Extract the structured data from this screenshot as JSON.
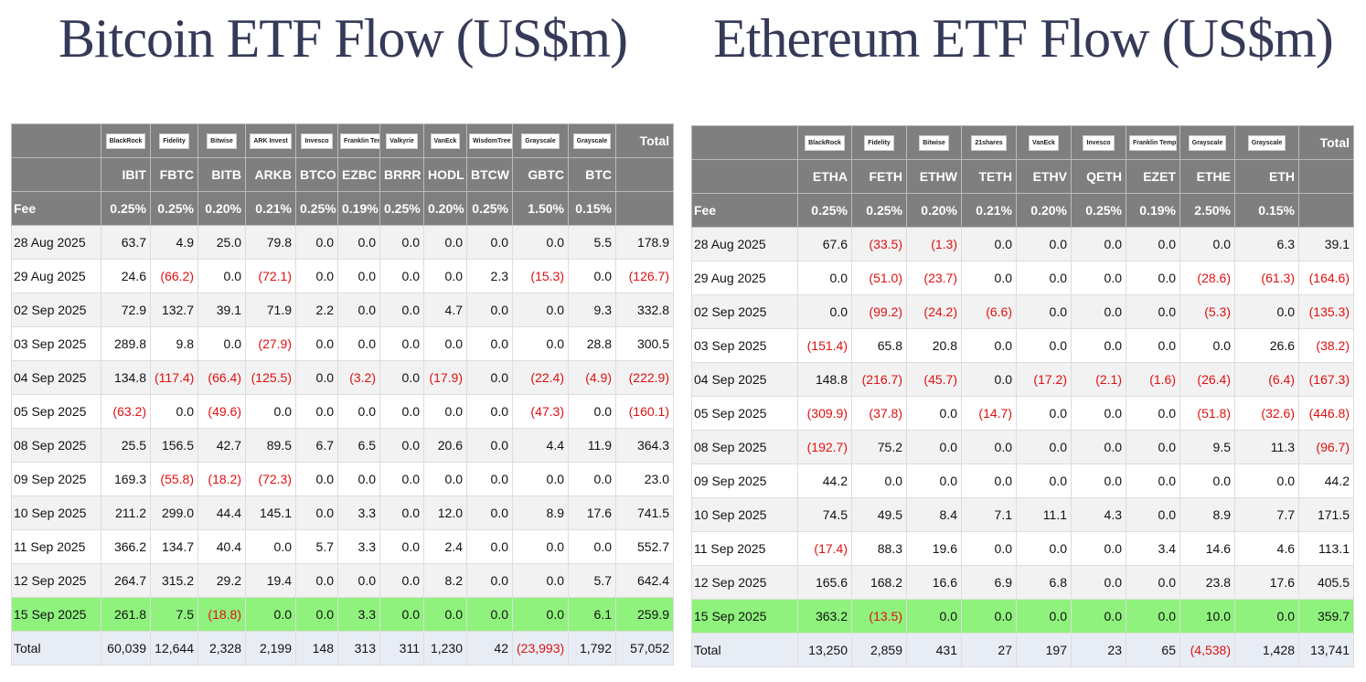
{
  "bitcoin": {
    "title": "Bitcoin ETF Flow (US$m)",
    "logos": [
      "BlackRock",
      "Fidelity",
      "Bitwise",
      "ARK Invest",
      "Invesco",
      "Franklin Templeton",
      "Valkyrie",
      "VanEck",
      "WisdomTree",
      "Grayscale",
      "Grayscale"
    ],
    "total_header": "Total",
    "tickers": [
      "IBIT",
      "FBTC",
      "BITB",
      "ARKB",
      "BTCO",
      "EZBC",
      "BRRR",
      "HODL",
      "BTCW",
      "GBTC",
      "BTC"
    ],
    "fee_label": "Fee",
    "fees": [
      "0.25%",
      "0.25%",
      "0.20%",
      "0.21%",
      "0.25%",
      "0.19%",
      "0.25%",
      "0.20%",
      "0.25%",
      "1.50%",
      "0.15%"
    ],
    "rows": [
      [
        "28 Aug 2025",
        "63.7",
        "4.9",
        "25.0",
        "79.8",
        "0.0",
        "0.0",
        "0.0",
        "0.0",
        "0.0",
        "0.0",
        "5.5",
        "178.9"
      ],
      [
        "29 Aug 2025",
        "24.6",
        "(66.2)",
        "0.0",
        "(72.1)",
        "0.0",
        "0.0",
        "0.0",
        "0.0",
        "2.3",
        "(15.3)",
        "0.0",
        "(126.7)"
      ],
      [
        "02 Sep 2025",
        "72.9",
        "132.7",
        "39.1",
        "71.9",
        "2.2",
        "0.0",
        "0.0",
        "4.7",
        "0.0",
        "0.0",
        "9.3",
        "332.8"
      ],
      [
        "03 Sep 2025",
        "289.8",
        "9.8",
        "0.0",
        "(27.9)",
        "0.0",
        "0.0",
        "0.0",
        "0.0",
        "0.0",
        "0.0",
        "28.8",
        "300.5"
      ],
      [
        "04 Sep 2025",
        "134.8",
        "(117.4)",
        "(66.4)",
        "(125.5)",
        "0.0",
        "(3.2)",
        "0.0",
        "(17.9)",
        "0.0",
        "(22.4)",
        "(4.9)",
        "(222.9)"
      ],
      [
        "05 Sep 2025",
        "(63.2)",
        "0.0",
        "(49.6)",
        "0.0",
        "0.0",
        "0.0",
        "0.0",
        "0.0",
        "0.0",
        "(47.3)",
        "0.0",
        "(160.1)"
      ],
      [
        "08 Sep 2025",
        "25.5",
        "156.5",
        "42.7",
        "89.5",
        "6.7",
        "6.5",
        "0.0",
        "20.6",
        "0.0",
        "4.4",
        "11.9",
        "364.3"
      ],
      [
        "09 Sep 2025",
        "169.3",
        "(55.8)",
        "(18.2)",
        "(72.3)",
        "0.0",
        "0.0",
        "0.0",
        "0.0",
        "0.0",
        "0.0",
        "0.0",
        "23.0"
      ],
      [
        "10 Sep 2025",
        "211.2",
        "299.0",
        "44.4",
        "145.1",
        "0.0",
        "3.3",
        "0.0",
        "12.0",
        "0.0",
        "8.9",
        "17.6",
        "741.5"
      ],
      [
        "11 Sep 2025",
        "366.2",
        "134.7",
        "40.4",
        "0.0",
        "5.7",
        "3.3",
        "0.0",
        "2.4",
        "0.0",
        "0.0",
        "0.0",
        "552.7"
      ],
      [
        "12 Sep 2025",
        "264.7",
        "315.2",
        "29.2",
        "19.4",
        "0.0",
        "0.0",
        "0.0",
        "8.2",
        "0.0",
        "0.0",
        "5.7",
        "642.4"
      ],
      [
        "15 Sep 2025",
        "261.8",
        "7.5",
        "(18.8)",
        "0.0",
        "0.0",
        "3.3",
        "0.0",
        "0.0",
        "0.0",
        "0.0",
        "6.1",
        "259.9"
      ]
    ],
    "total_row": [
      "Total",
      "60,039",
      "12,644",
      "2,328",
      "2,199",
      "148",
      "313",
      "311",
      "1,230",
      "42",
      "(23,993)",
      "1,792",
      "57,052"
    ]
  },
  "ethereum": {
    "title": "Ethereum ETF Flow (US$m)",
    "logos": [
      "BlackRock",
      "Fidelity",
      "Bitwise",
      "21shares",
      "VanEck",
      "Invesco",
      "Franklin Templeton",
      "Grayscale",
      "Grayscale"
    ],
    "total_header": "Total",
    "tickers": [
      "ETHA",
      "FETH",
      "ETHW",
      "TETH",
      "ETHV",
      "QETH",
      "EZET",
      "ETHE",
      "ETH"
    ],
    "fee_label": "Fee",
    "fees": [
      "0.25%",
      "0.25%",
      "0.20%",
      "0.21%",
      "0.20%",
      "0.25%",
      "0.19%",
      "2.50%",
      "0.15%"
    ],
    "rows": [
      [
        "28 Aug 2025",
        "67.6",
        "(33.5)",
        "(1.3)",
        "0.0",
        "0.0",
        "0.0",
        "0.0",
        "0.0",
        "6.3",
        "39.1"
      ],
      [
        "29 Aug 2025",
        "0.0",
        "(51.0)",
        "(23.7)",
        "0.0",
        "0.0",
        "0.0",
        "0.0",
        "(28.6)",
        "(61.3)",
        "(164.6)"
      ],
      [
        "02 Sep 2025",
        "0.0",
        "(99.2)",
        "(24.2)",
        "(6.6)",
        "0.0",
        "0.0",
        "0.0",
        "(5.3)",
        "0.0",
        "(135.3)"
      ],
      [
        "03 Sep 2025",
        "(151.4)",
        "65.8",
        "20.8",
        "0.0",
        "0.0",
        "0.0",
        "0.0",
        "0.0",
        "26.6",
        "(38.2)"
      ],
      [
        "04 Sep 2025",
        "148.8",
        "(216.7)",
        "(45.7)",
        "0.0",
        "(17.2)",
        "(2.1)",
        "(1.6)",
        "(26.4)",
        "(6.4)",
        "(167.3)"
      ],
      [
        "05 Sep 2025",
        "(309.9)",
        "(37.8)",
        "0.0",
        "(14.7)",
        "0.0",
        "0.0",
        "0.0",
        "(51.8)",
        "(32.6)",
        "(446.8)"
      ],
      [
        "08 Sep 2025",
        "(192.7)",
        "75.2",
        "0.0",
        "0.0",
        "0.0",
        "0.0",
        "0.0",
        "9.5",
        "11.3",
        "(96.7)"
      ],
      [
        "09 Sep 2025",
        "44.2",
        "0.0",
        "0.0",
        "0.0",
        "0.0",
        "0.0",
        "0.0",
        "0.0",
        "0.0",
        "44.2"
      ],
      [
        "10 Sep 2025",
        "74.5",
        "49.5",
        "8.4",
        "7.1",
        "11.1",
        "4.3",
        "0.0",
        "8.9",
        "7.7",
        "171.5"
      ],
      [
        "11 Sep 2025",
        "(17.4)",
        "88.3",
        "19.6",
        "0.0",
        "0.0",
        "0.0",
        "3.4",
        "14.6",
        "4.6",
        "113.1"
      ],
      [
        "12 Sep 2025",
        "165.6",
        "168.2",
        "16.6",
        "6.9",
        "6.8",
        "0.0",
        "0.0",
        "23.8",
        "17.6",
        "405.5"
      ],
      [
        "15 Sep 2025",
        "363.2",
        "(13.5)",
        "0.0",
        "0.0",
        "0.0",
        "0.0",
        "0.0",
        "10.0",
        "0.0",
        "359.7"
      ]
    ],
    "total_row": [
      "Total",
      "13,250",
      "2,859",
      "431",
      "27",
      "197",
      "23",
      "65",
      "(4,538)",
      "1,428",
      "13,741"
    ]
  }
}
